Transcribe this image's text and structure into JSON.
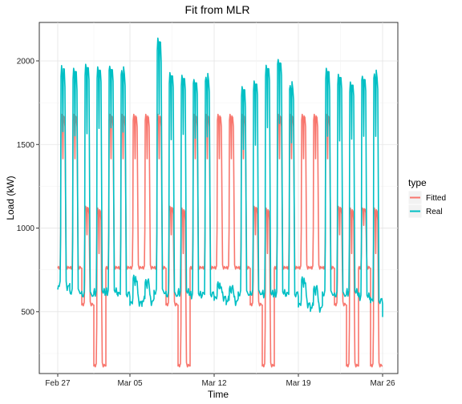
{
  "chart_data": {
    "type": "line",
    "title": "Fit from MLR",
    "xlabel": "Time",
    "ylabel": "Load (kW)",
    "x_axis": {
      "start": "2014-02-27",
      "end": "2014-03-26",
      "ticks": [
        {
          "date": "2014-02-27",
          "label": "Feb 27"
        },
        {
          "date": "2014-03-05",
          "label": "Mar 05"
        },
        {
          "date": "2014-03-12",
          "label": "Mar 12"
        },
        {
          "date": "2014-03-19",
          "label": "Mar 19"
        },
        {
          "date": "2014-03-26",
          "label": "Mar 26"
        }
      ]
    },
    "y_axis": {
      "ylim": [
        130,
        2230
      ],
      "ticks": [
        500,
        1000,
        1500,
        2000
      ]
    },
    "grid": true,
    "legend": {
      "title": "type",
      "position": "right"
    },
    "series": [
      {
        "name": "Fitted",
        "color": "#F8766D",
        "daily": [
          {
            "date": "2014-02-27",
            "night": 760,
            "peak": 1680
          },
          {
            "date": "2014-02-28",
            "night": 760,
            "peak": 1680
          },
          {
            "date": "2014-03-01",
            "night": 540,
            "peak": 1130
          },
          {
            "date": "2014-03-02",
            "night": 175,
            "peak": 1120
          },
          {
            "date": "2014-03-03",
            "night": 760,
            "peak": 1680
          },
          {
            "date": "2014-03-04",
            "night": 760,
            "peak": 1680
          },
          {
            "date": "2014-03-05",
            "night": 760,
            "peak": 1680
          },
          {
            "date": "2014-03-06",
            "night": 760,
            "peak": 1680
          },
          {
            "date": "2014-03-07",
            "night": 760,
            "peak": 1680
          },
          {
            "date": "2014-03-08",
            "night": 540,
            "peak": 1130
          },
          {
            "date": "2014-03-09",
            "night": 175,
            "peak": 1120
          },
          {
            "date": "2014-03-10",
            "night": 760,
            "peak": 1680
          },
          {
            "date": "2014-03-11",
            "night": 760,
            "peak": 1680
          },
          {
            "date": "2014-03-12",
            "night": 760,
            "peak": 1680
          },
          {
            "date": "2014-03-13",
            "night": 760,
            "peak": 1680
          },
          {
            "date": "2014-03-14",
            "night": 760,
            "peak": 1680
          },
          {
            "date": "2014-03-15",
            "night": 540,
            "peak": 1130
          },
          {
            "date": "2014-03-16",
            "night": 175,
            "peak": 1120
          },
          {
            "date": "2014-03-17",
            "night": 760,
            "peak": 1680
          },
          {
            "date": "2014-03-18",
            "night": 760,
            "peak": 1680
          },
          {
            "date": "2014-03-19",
            "night": 760,
            "peak": 1680
          },
          {
            "date": "2014-03-20",
            "night": 760,
            "peak": 1680
          },
          {
            "date": "2014-03-21",
            "night": 760,
            "peak": 1680
          },
          {
            "date": "2014-03-22",
            "night": 540,
            "peak": 1130
          },
          {
            "date": "2014-03-23",
            "night": 175,
            "peak": 1120
          },
          {
            "date": "2014-03-24",
            "night": 760,
            "peak": 1120
          },
          {
            "date": "2014-03-25",
            "night": 175,
            "peak": 1120
          }
        ]
      },
      {
        "name": "Real",
        "color": "#00BFC4",
        "daily": [
          {
            "date": "2014-02-27",
            "night": 650,
            "peak": 1960
          },
          {
            "date": "2014-02-28",
            "night": 610,
            "peak": 1950
          },
          {
            "date": "2014-03-01",
            "night": 600,
            "peak": 1980
          },
          {
            "date": "2014-03-02",
            "night": 610,
            "peak": 1970
          },
          {
            "date": "2014-03-03",
            "night": 620,
            "peak": 1980
          },
          {
            "date": "2014-03-04",
            "night": 600,
            "peak": 1960
          },
          {
            "date": "2014-03-05",
            "night": 550,
            "peak": 700
          },
          {
            "date": "2014-03-06",
            "night": 560,
            "peak": 680
          },
          {
            "date": "2014-03-07",
            "night": 610,
            "peak": 2130
          },
          {
            "date": "2014-03-08",
            "night": 600,
            "peak": 1930
          },
          {
            "date": "2014-03-09",
            "night": 610,
            "peak": 1920
          },
          {
            "date": "2014-03-10",
            "night": 600,
            "peak": 1900
          },
          {
            "date": "2014-03-11",
            "night": 600,
            "peak": 1920
          },
          {
            "date": "2014-03-12",
            "night": 580,
            "peak": 660
          },
          {
            "date": "2014-03-13",
            "night": 560,
            "peak": 640
          },
          {
            "date": "2014-03-14",
            "night": 600,
            "peak": 1840
          },
          {
            "date": "2014-03-15",
            "night": 610,
            "peak": 1880
          },
          {
            "date": "2014-03-16",
            "night": 600,
            "peak": 1980
          },
          {
            "date": "2014-03-17",
            "night": 610,
            "peak": 2020
          },
          {
            "date": "2014-03-18",
            "night": 600,
            "peak": 1870
          },
          {
            "date": "2014-03-19",
            "night": 540,
            "peak": 690
          },
          {
            "date": "2014-03-20",
            "night": 520,
            "peak": 640
          },
          {
            "date": "2014-03-21",
            "night": 600,
            "peak": 1950
          },
          {
            "date": "2014-03-22",
            "night": 600,
            "peak": 1920
          },
          {
            "date": "2014-03-23",
            "night": 610,
            "peak": 1880
          },
          {
            "date": "2014-03-24",
            "night": 590,
            "peak": 1920
          },
          {
            "date": "2014-03-25",
            "night": 560,
            "peak": 1940
          },
          {
            "date": "2014-03-26",
            "night": 480,
            "peak": 560
          }
        ]
      }
    ]
  }
}
